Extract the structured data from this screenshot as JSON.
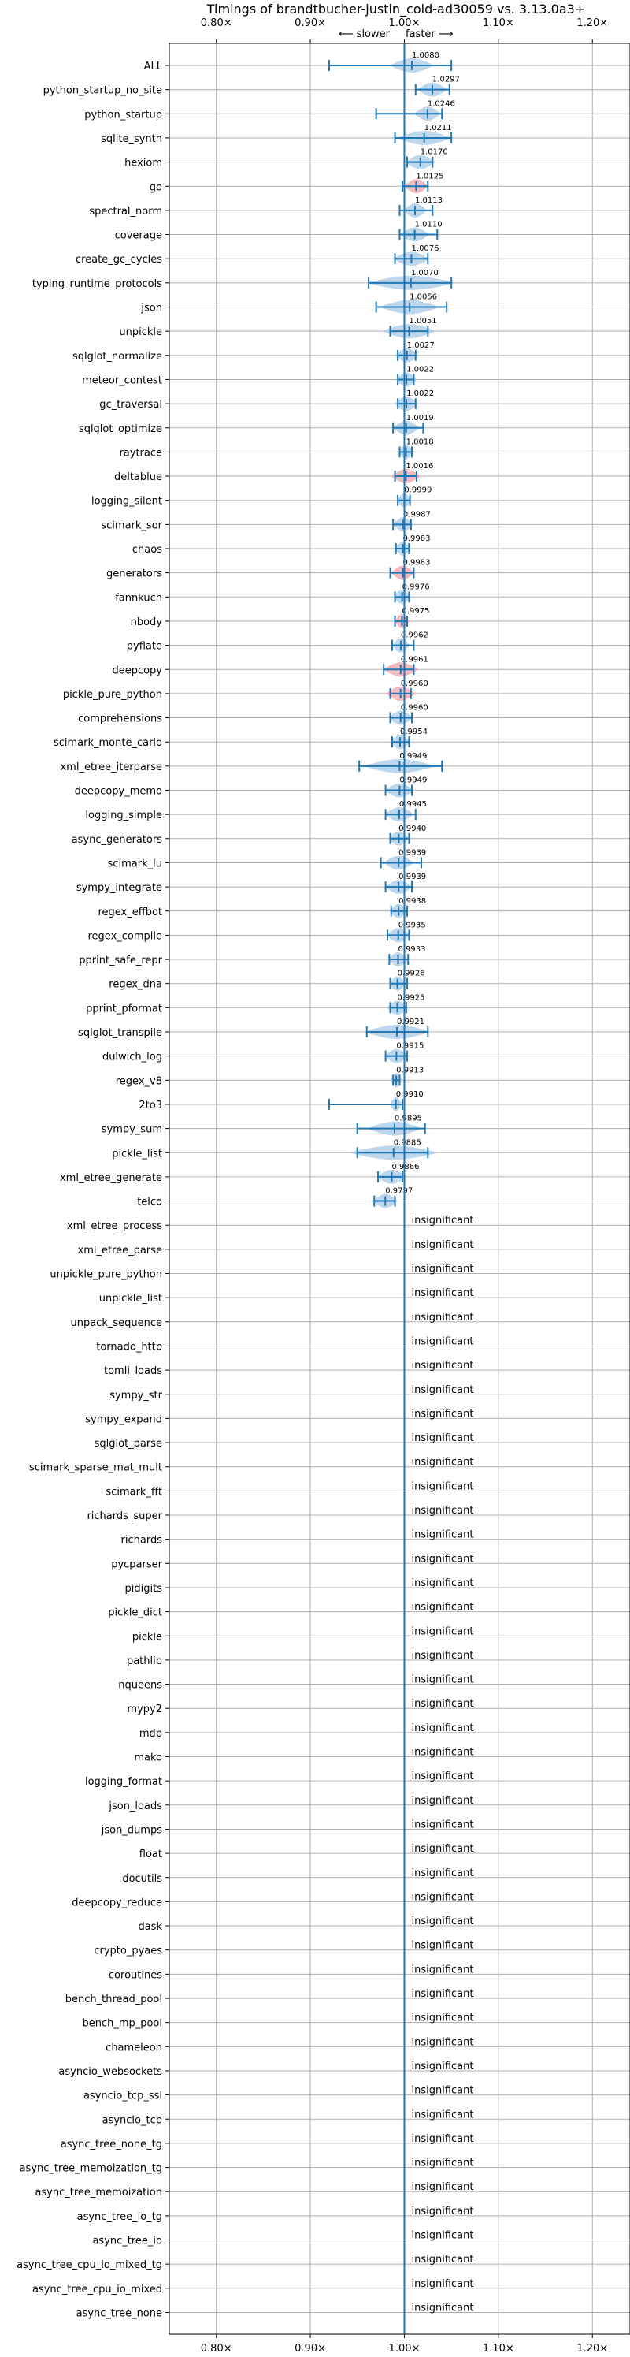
{
  "chart_data": {
    "type": "violin",
    "title": "Timings of brandtbucher-justin_cold-ad30059 vs. 3.13.0a3+",
    "annotation_slower": "⟵ slower",
    "annotation_faster": "faster ⟶",
    "insignificant_label": "insignificant",
    "xlim": [
      0.75,
      1.24
    ],
    "xticks": [
      0.8,
      0.9,
      1.0,
      1.1,
      1.2
    ],
    "xtick_labels": [
      "0.80×",
      "0.90×",
      "1.00×",
      "1.10×",
      "1.20×"
    ],
    "grid": true,
    "colors": {
      "faster": "#a9c9e6",
      "slower": "#f2a3a8",
      "line": "#1f77b4"
    },
    "benchmarks": [
      {
        "name": "ALL",
        "value": 1.008,
        "label": "1.0080",
        "min": 0.92,
        "max": 1.05,
        "width": 0.015,
        "color": "faster"
      },
      {
        "name": "python_startup_no_site",
        "value": 1.0297,
        "label": "1.0297",
        "min": 1.012,
        "max": 1.048,
        "width": 0.01,
        "color": "faster"
      },
      {
        "name": "python_startup",
        "value": 1.0246,
        "label": "1.0246",
        "min": 0.97,
        "max": 1.04,
        "width": 0.009,
        "color": "faster"
      },
      {
        "name": "sqlite_synth",
        "value": 1.0211,
        "label": "1.0211",
        "min": 0.99,
        "max": 1.05,
        "width": 0.018,
        "color": "faster"
      },
      {
        "name": "hexiom",
        "value": 1.017,
        "label": "1.0170",
        "min": 1.003,
        "max": 1.03,
        "width": 0.01,
        "color": "faster"
      },
      {
        "name": "go",
        "value": 1.0125,
        "label": "1.0125",
        "min": 0.998,
        "max": 1.025,
        "width": 0.008,
        "color": "slower"
      },
      {
        "name": "spectral_norm",
        "value": 1.0113,
        "label": "1.0113",
        "min": 0.995,
        "max": 1.03,
        "width": 0.008,
        "color": "faster"
      },
      {
        "name": "coverage",
        "value": 1.011,
        "label": "1.0110",
        "min": 0.995,
        "max": 1.035,
        "width": 0.01,
        "color": "faster"
      },
      {
        "name": "create_gc_cycles",
        "value": 1.0076,
        "label": "1.0076",
        "min": 0.99,
        "max": 1.025,
        "width": 0.012,
        "color": "faster"
      },
      {
        "name": "typing_runtime_protocols",
        "value": 1.007,
        "label": "1.0070",
        "min": 0.962,
        "max": 1.05,
        "width": 0.03,
        "color": "faster"
      },
      {
        "name": "json",
        "value": 1.0056,
        "label": "1.0056",
        "min": 0.97,
        "max": 1.045,
        "width": 0.02,
        "color": "faster"
      },
      {
        "name": "unpickle",
        "value": 1.0051,
        "label": "1.0051",
        "min": 0.985,
        "max": 1.025,
        "width": 0.018,
        "color": "faster"
      },
      {
        "name": "sqlglot_normalize",
        "value": 1.0027,
        "label": "1.0027",
        "min": 0.993,
        "max": 1.012,
        "width": 0.008,
        "color": "faster"
      },
      {
        "name": "meteor_contest",
        "value": 1.0022,
        "label": "1.0022",
        "min": 0.993,
        "max": 1.01,
        "width": 0.007,
        "color": "faster"
      },
      {
        "name": "gc_traversal",
        "value": 1.0022,
        "label": "1.0022",
        "min": 0.993,
        "max": 1.012,
        "width": 0.008,
        "color": "faster"
      },
      {
        "name": "sqlglot_optimize",
        "value": 1.0019,
        "label": "1.0019",
        "min": 0.988,
        "max": 1.02,
        "width": 0.009,
        "color": "faster"
      },
      {
        "name": "raytrace",
        "value": 1.0018,
        "label": "1.0018",
        "min": 0.995,
        "max": 1.008,
        "width": 0.005,
        "color": "faster"
      },
      {
        "name": "deltablue",
        "value": 1.0016,
        "label": "1.0016",
        "min": 0.99,
        "max": 1.013,
        "width": 0.01,
        "color": "slower"
      },
      {
        "name": "logging_silent",
        "value": 0.9999,
        "label": "0.9999",
        "min": 0.993,
        "max": 1.006,
        "width": 0.005,
        "color": "faster"
      },
      {
        "name": "scimark_sor",
        "value": 0.9987,
        "label": "0.9987",
        "min": 0.988,
        "max": 1.007,
        "width": 0.007,
        "color": "faster"
      },
      {
        "name": "chaos",
        "value": 0.9983,
        "label": "0.9983",
        "min": 0.991,
        "max": 1.005,
        "width": 0.005,
        "color": "faster"
      },
      {
        "name": "generators",
        "value": 0.9983,
        "label": "0.9983",
        "min": 0.985,
        "max": 1.01,
        "width": 0.008,
        "color": "slower"
      },
      {
        "name": "fannkuch",
        "value": 0.9976,
        "label": "0.9976",
        "min": 0.99,
        "max": 1.005,
        "width": 0.006,
        "color": "faster"
      },
      {
        "name": "nbody",
        "value": 0.9975,
        "label": "0.9975",
        "min": 0.99,
        "max": 1.003,
        "width": 0.005,
        "color": "slower"
      },
      {
        "name": "pyflate",
        "value": 0.9962,
        "label": "0.9962",
        "min": 0.987,
        "max": 1.01,
        "width": 0.006,
        "color": "faster"
      },
      {
        "name": "deepcopy",
        "value": 0.9961,
        "label": "0.9961",
        "min": 0.978,
        "max": 1.01,
        "width": 0.012,
        "color": "slower"
      },
      {
        "name": "pickle_pure_python",
        "value": 0.996,
        "label": "0.9960",
        "min": 0.985,
        "max": 1.007,
        "width": 0.01,
        "color": "slower"
      },
      {
        "name": "comprehensions",
        "value": 0.996,
        "label": "0.9960",
        "min": 0.985,
        "max": 1.008,
        "width": 0.008,
        "color": "faster"
      },
      {
        "name": "scimark_monte_carlo",
        "value": 0.9954,
        "label": "0.9954",
        "min": 0.987,
        "max": 1.005,
        "width": 0.007,
        "color": "faster"
      },
      {
        "name": "xml_etree_iterparse",
        "value": 0.9949,
        "label": "0.9949",
        "min": 0.952,
        "max": 1.04,
        "width": 0.024,
        "color": "faster"
      },
      {
        "name": "deepcopy_memo",
        "value": 0.9949,
        "label": "0.9949",
        "min": 0.98,
        "max": 1.008,
        "width": 0.01,
        "color": "faster"
      },
      {
        "name": "logging_simple",
        "value": 0.9945,
        "label": "0.9945",
        "min": 0.98,
        "max": 1.012,
        "width": 0.01,
        "color": "faster"
      },
      {
        "name": "async_generators",
        "value": 0.994,
        "label": "0.9940",
        "min": 0.985,
        "max": 1.005,
        "width": 0.007,
        "color": "faster"
      },
      {
        "name": "scimark_lu",
        "value": 0.9939,
        "label": "0.9939",
        "min": 0.975,
        "max": 1.018,
        "width": 0.01,
        "color": "faster"
      },
      {
        "name": "sympy_integrate",
        "value": 0.9939,
        "label": "0.9939",
        "min": 0.98,
        "max": 1.008,
        "width": 0.009,
        "color": "faster"
      },
      {
        "name": "regex_effbot",
        "value": 0.9938,
        "label": "0.9938",
        "min": 0.986,
        "max": 1.003,
        "width": 0.006,
        "color": "faster"
      },
      {
        "name": "regex_compile",
        "value": 0.9935,
        "label": "0.9935",
        "min": 0.982,
        "max": 1.005,
        "width": 0.008,
        "color": "faster"
      },
      {
        "name": "pprint_safe_repr",
        "value": 0.9933,
        "label": "0.9933",
        "min": 0.984,
        "max": 1.004,
        "width": 0.007,
        "color": "faster"
      },
      {
        "name": "regex_dna",
        "value": 0.9926,
        "label": "0.9926",
        "min": 0.985,
        "max": 1.003,
        "width": 0.006,
        "color": "faster"
      },
      {
        "name": "pprint_pformat",
        "value": 0.9925,
        "label": "0.9925",
        "min": 0.985,
        "max": 1.002,
        "width": 0.007,
        "color": "faster"
      },
      {
        "name": "sqlglot_transpile",
        "value": 0.9921,
        "label": "0.9921",
        "min": 0.96,
        "max": 1.025,
        "width": 0.022,
        "color": "faster"
      },
      {
        "name": "dulwich_log",
        "value": 0.9915,
        "label": "0.9915",
        "min": 0.98,
        "max": 1.003,
        "width": 0.008,
        "color": "faster"
      },
      {
        "name": "regex_v8",
        "value": 0.9913,
        "label": "0.9913",
        "min": 0.988,
        "max": 0.995,
        "width": 0.004,
        "color": "faster"
      },
      {
        "name": "2to3",
        "value": 0.991,
        "label": "0.9910",
        "min": 0.92,
        "max": 0.998,
        "width": 0.004,
        "color": "faster"
      },
      {
        "name": "sympy_sum",
        "value": 0.9895,
        "label": "0.9895",
        "min": 0.95,
        "max": 1.022,
        "width": 0.018,
        "color": "faster"
      },
      {
        "name": "pickle_list",
        "value": 0.9885,
        "label": "0.9885",
        "min": 0.95,
        "max": 1.025,
        "width": 0.03,
        "color": "faster"
      },
      {
        "name": "xml_etree_generate",
        "value": 0.9866,
        "label": "0.9866",
        "min": 0.972,
        "max": 0.998,
        "width": 0.01,
        "color": "faster"
      },
      {
        "name": "telco",
        "value": 0.9797,
        "label": "0.9797",
        "min": 0.968,
        "max": 0.99,
        "width": 0.008,
        "color": "faster"
      }
    ],
    "insignificant": [
      "xml_etree_process",
      "xml_etree_parse",
      "unpickle_pure_python",
      "unpickle_list",
      "unpack_sequence",
      "tornado_http",
      "tomli_loads",
      "sympy_str",
      "sympy_expand",
      "sqlglot_parse",
      "scimark_sparse_mat_mult",
      "scimark_fft",
      "richards_super",
      "richards",
      "pycparser",
      "pidigits",
      "pickle_dict",
      "pickle",
      "pathlib",
      "nqueens",
      "mypy2",
      "mdp",
      "mako",
      "logging_format",
      "json_loads",
      "json_dumps",
      "float",
      "docutils",
      "deepcopy_reduce",
      "dask",
      "crypto_pyaes",
      "coroutines",
      "bench_thread_pool",
      "bench_mp_pool",
      "chameleon",
      "asyncio_websockets",
      "asyncio_tcp_ssl",
      "asyncio_tcp",
      "async_tree_none_tg",
      "async_tree_memoization_tg",
      "async_tree_memoization",
      "async_tree_io_tg",
      "async_tree_io",
      "async_tree_cpu_io_mixed_tg",
      "async_tree_cpu_io_mixed",
      "async_tree_none"
    ]
  }
}
